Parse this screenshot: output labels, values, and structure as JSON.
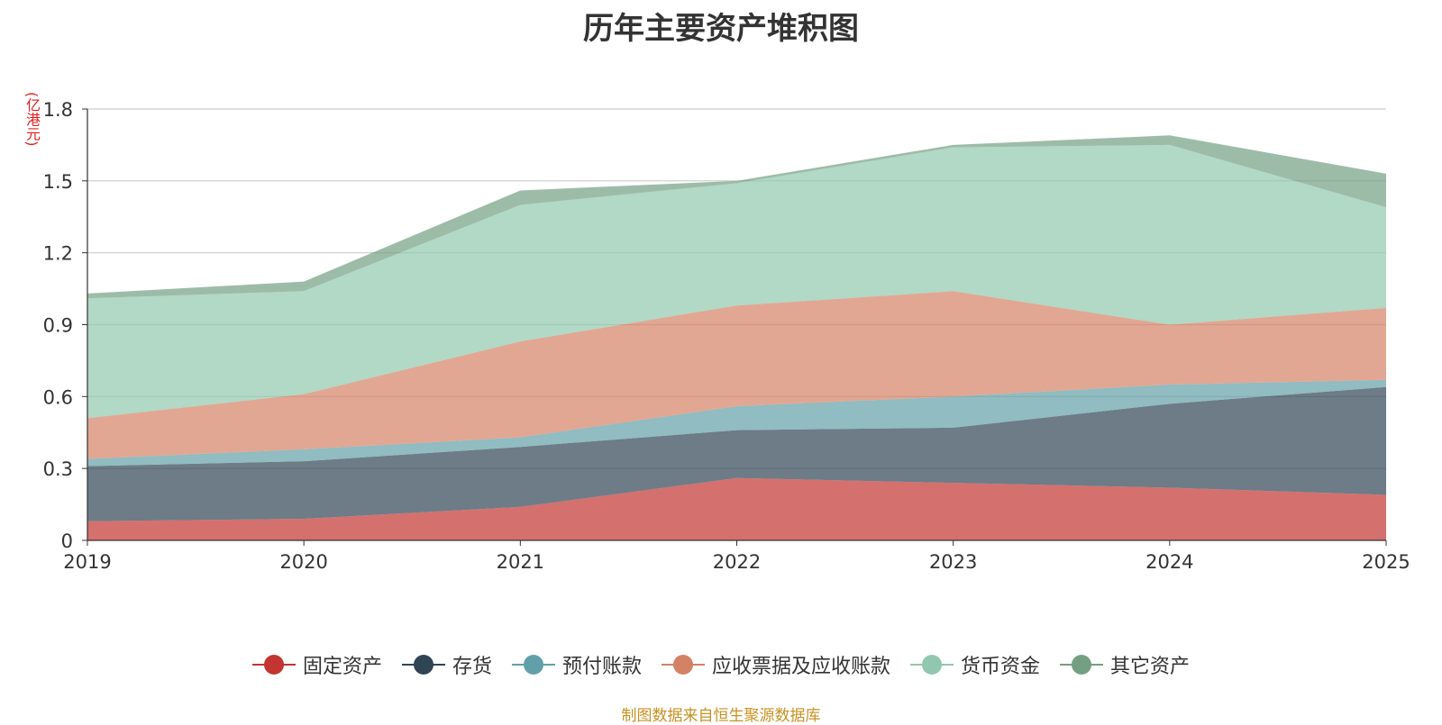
{
  "chart_data": {
    "type": "area",
    "stacked": true,
    "title": "历年主要资产堆积图",
    "ylabel": "(亿港元)",
    "xlabel": "",
    "categories": [
      "2019",
      "2020",
      "2021",
      "2022",
      "2023",
      "2024",
      "2025"
    ],
    "ylim": [
      0,
      1.8
    ],
    "yticks": [
      "0",
      "0.3",
      "0.6",
      "0.9",
      "1.2",
      "1.5",
      "1.8"
    ],
    "grid": true,
    "legend_position": "bottom",
    "series": [
      {
        "name": "固定资产",
        "color": "#c23531",
        "values": [
          0.08,
          0.09,
          0.14,
          0.26,
          0.24,
          0.22,
          0.19
        ]
      },
      {
        "name": "存货",
        "color": "#2f4554",
        "values": [
          0.23,
          0.24,
          0.25,
          0.2,
          0.23,
          0.35,
          0.45
        ]
      },
      {
        "name": "预付账款",
        "color": "#61a0a8",
        "values": [
          0.03,
          0.05,
          0.04,
          0.1,
          0.13,
          0.08,
          0.03
        ]
      },
      {
        "name": "应收票据及应收账款",
        "color": "#d48265",
        "values": [
          0.17,
          0.23,
          0.4,
          0.42,
          0.44,
          0.25,
          0.3
        ]
      },
      {
        "name": "货币资金",
        "color": "#91c7ae",
        "values": [
          0.5,
          0.43,
          0.57,
          0.51,
          0.6,
          0.75,
          0.42
        ]
      },
      {
        "name": "其它资产",
        "color": "#749f83",
        "values": [
          0.02,
          0.04,
          0.06,
          0.01,
          0.01,
          0.04,
          0.14
        ]
      }
    ]
  },
  "source_note": "制图数据来自恒生聚源数据库"
}
